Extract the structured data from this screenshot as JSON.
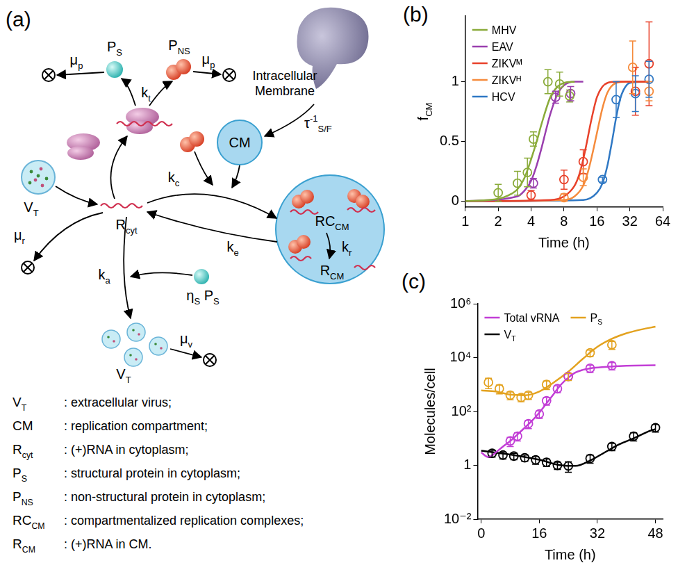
{
  "diagram": {
    "panel": "(a)",
    "labels": {
      "p_s": {
        "text": "P",
        "sub": "S"
      },
      "p_ns": {
        "text": "P",
        "sub": "NS"
      },
      "mu_p_left": {
        "text": "μ",
        "sub": "p"
      },
      "mu_p_right": {
        "text": "μ",
        "sub": "p"
      },
      "k_t": {
        "text": "k",
        "sub": "t"
      },
      "membrane": "Intracellular Membrane",
      "tau": {
        "text": "τ",
        "sup": "-1",
        "sub": "S/F"
      },
      "cm": "CM",
      "v_t_in": {
        "text": "V",
        "sub": "T"
      },
      "r_cyt": {
        "text": "R",
        "sub": "cyt"
      },
      "mu_r": {
        "text": "μ",
        "sub": "r"
      },
      "k_c": {
        "text": "k",
        "sub": "c"
      },
      "k_e": {
        "text": "k",
        "sub": "e"
      },
      "rc_cm": {
        "text": "RC",
        "sub": "CM"
      },
      "k_r": {
        "text": "k",
        "sub": "r"
      },
      "r_cm": {
        "text": "R",
        "sub": "CM"
      },
      "eta_p_s": [
        {
          "text": "η",
          "sub": "S"
        },
        {
          "text": " P",
          "sub": "S"
        }
      ],
      "k_a": {
        "text": "k",
        "sub": "a"
      },
      "v_t_out": {
        "text": "V",
        "sub": "T"
      },
      "mu_v": {
        "text": "μ",
        "sub": "v"
      }
    },
    "definitions": [
      {
        "symbol": {
          "text": "V",
          "sub": "T"
        },
        "text": ": extracellular virus;"
      },
      {
        "symbol": {
          "text": "CM"
        },
        "text": ": replication compartment;"
      },
      {
        "symbol": {
          "text": "R",
          "sub": "cyt"
        },
        "text": ": (+)RNA in cytoplasm;"
      },
      {
        "symbol": {
          "text": "P",
          "sub": "S"
        },
        "text": ": structural protein in cytoplasm;"
      },
      {
        "symbol": {
          "text": "P",
          "sub": "NS"
        },
        "text": ": non-structural protein in cytoplasm;"
      },
      {
        "symbol": {
          "text": "RC",
          "sub": "CM"
        },
        "text": ": compartmentalized replication complexes;"
      },
      {
        "symbol": {
          "text": "R",
          "sub": "CM"
        },
        "text": ": (+)RNA in CM."
      }
    ]
  },
  "chart_data": [
    {
      "panel": "(b)",
      "type": "line",
      "x_label": "Time (h)",
      "y_label": {
        "text": "f",
        "sub": "CM"
      },
      "log": "x",
      "grid": false,
      "legend": "upper left",
      "xlim": [
        1,
        64
      ],
      "xticks": [
        1,
        2,
        4,
        8,
        16,
        32,
        64
      ],
      "ylim": [
        -0.05,
        1.55
      ],
      "yticks": [
        0,
        0.5,
        1
      ],
      "series": [
        {
          "name": "MHV",
          "color": "#8aab3a",
          "marker": "circle",
          "line_style": "solid",
          "x": [
            2,
            3,
            3.7,
            4.2,
            5.7,
            7.3,
            9
          ],
          "values": [
            0.07,
            0.15,
            0.24,
            0.52,
            1.0,
            0.98,
            0.88
          ],
          "error": [
            0.07,
            0.1,
            0.12,
            0.06,
            0.1,
            0.1,
            0.05
          ],
          "fit": {
            "x": [
              1,
              2,
              2.5,
              3,
              3.5,
              4,
              4.5,
              5,
              6,
              7,
              8,
              10
            ],
            "values": [
              0,
              0.02,
              0.05,
              0.1,
              0.2,
              0.35,
              0.5,
              0.65,
              0.87,
              0.96,
              0.99,
              1.0
            ]
          }
        },
        {
          "name": "EAV",
          "color": "#9a3fae",
          "marker": "circle",
          "line_style": "solid",
          "x": [
            4.2,
            6.7,
            9.2
          ],
          "values": [
            0.15,
            0.87,
            0.9
          ],
          "error": [
            0.04,
            0.05,
            0.06
          ],
          "fit": {
            "x": [
              1,
              3,
              3.5,
              4,
              4.5,
              5,
              5.5,
              6,
              7,
              8,
              10,
              12
            ],
            "values": [
              0,
              0.04,
              0.09,
              0.17,
              0.3,
              0.45,
              0.6,
              0.73,
              0.9,
              0.97,
              1.0,
              1.0
            ]
          }
        },
        {
          "name": "ZIKVᴹ",
          "color": "#e8412a",
          "marker": "circle",
          "line_style": "solid",
          "x": [
            4,
            8,
            12,
            36,
            48
          ],
          "values": [
            0.05,
            0.18,
            0.33,
            0.92,
            1.15
          ],
          "error": [
            0.04,
            0.08,
            0.1,
            0.2,
            0.35
          ],
          "fit": {
            "x": [
              1,
              6,
              8,
              10,
              11,
              12,
              13,
              14,
              16,
              18,
              20,
              24,
              48
            ],
            "values": [
              0,
              0.01,
              0.04,
              0.13,
              0.22,
              0.35,
              0.5,
              0.65,
              0.87,
              0.96,
              0.99,
              1.0,
              1.0
            ]
          }
        },
        {
          "name": "ZIKVᴴ",
          "color": "#f58b3c",
          "marker": "circle",
          "line_style": "solid",
          "x": [
            8,
            12,
            34,
            48
          ],
          "values": [
            0.03,
            0.2,
            1.12,
            0.92
          ],
          "error": [
            0.03,
            0.07,
            0.22,
            0.08
          ],
          "fit": {
            "x": [
              1,
              8,
              10,
              12,
              13,
              14,
              15,
              16,
              18,
              20,
              24,
              30,
              48
            ],
            "values": [
              0,
              0.01,
              0.04,
              0.13,
              0.22,
              0.33,
              0.45,
              0.57,
              0.78,
              0.91,
              0.99,
              1.0,
              1.0
            ]
          }
        },
        {
          "name": "HCV",
          "color": "#2f78c4",
          "marker": "circle",
          "line_style": "solid",
          "x": [
            18,
            24,
            36,
            48
          ],
          "values": [
            0.18,
            0.85,
            0.9,
            1.02
          ],
          "error": [
            0.02,
            0.15,
            0.15,
            0.15
          ],
          "fit": {
            "x": [
              1,
              12,
              16,
              18,
              20,
              21,
              22,
              24,
              26,
              28,
              32,
              48
            ],
            "values": [
              0,
              0.01,
              0.07,
              0.15,
              0.3,
              0.4,
              0.5,
              0.7,
              0.85,
              0.93,
              0.99,
              1.0
            ]
          }
        }
      ]
    },
    {
      "panel": "(c)",
      "type": "line",
      "x_label": "Time (h)",
      "y_label": "Molecules/cell",
      "log": "y",
      "grid": false,
      "legend": "upper left",
      "xlim": [
        -1,
        50
      ],
      "xticks": [
        0,
        16,
        32,
        48
      ],
      "ylim": [
        0.01,
        1000000
      ],
      "yticks": [
        {
          "value": 0.01,
          "label": "10⁻²"
        },
        1,
        {
          "value": 100,
          "label": "10²"
        },
        {
          "value": 10000,
          "label": "10⁴"
        },
        {
          "value": 1000000,
          "label": "10⁶"
        }
      ],
      "series": [
        {
          "name": "Total vRNA",
          "color": "#c23ed6",
          "marker": "circle",
          "line_style": "solid",
          "x": [
            8,
            10,
            13,
            16,
            18,
            21,
            24,
            30,
            36
          ],
          "values": [
            8,
            12,
            35,
            80,
            250,
            700,
            2000,
            4000,
            5000
          ],
          "error": [
            3,
            4,
            12,
            25,
            80,
            200,
            500,
            1200,
            1500
          ],
          "fit": {
            "x": [
              0,
              2,
              4,
              6,
              8,
              10,
              12,
              14,
              16,
              18,
              20,
              22,
              24,
              26,
              28,
              30,
              34,
              40,
              48
            ],
            "values": [
              3,
              2,
              3,
              5,
              8,
              14,
              25,
              45,
              90,
              200,
              450,
              1000,
              1800,
              2800,
              3500,
              4000,
              4500,
              5000,
              5200
            ]
          }
        },
        {
          "name": "P",
          "name_sub": "S",
          "color": "#e3a21f",
          "marker": "circle",
          "line_style": "solid",
          "x": [
            2,
            5,
            8,
            11,
            13,
            18,
            24,
            30,
            36
          ],
          "values": [
            1200,
            700,
            400,
            330,
            400,
            1000,
            2000,
            15000,
            30000
          ],
          "error": [
            500,
            250,
            130,
            100,
            120,
            350,
            600,
            4000,
            10000
          ],
          "fit": {
            "x": [
              0,
              4,
              8,
              12,
              16,
              20,
              24,
              28,
              32,
              36,
              40,
              44,
              48
            ],
            "values": [
              600,
              550,
              420,
              400,
              550,
              1200,
              3000,
              9000,
              25000,
              50000,
              80000,
              110000,
              140000
            ]
          }
        },
        {
          "name": "V",
          "name_sub": "T",
          "color": "#000000",
          "marker": "circle",
          "line_style": "solid",
          "x": [
            3,
            6,
            9,
            12,
            15,
            18,
            21,
            24,
            30,
            36,
            42,
            48
          ],
          "values": [
            2.8,
            2.4,
            2.2,
            1.9,
            1.6,
            1.3,
            1,
            0.95,
            1.8,
            5,
            12,
            25
          ],
          "error": [
            0.8,
            0.7,
            0.6,
            0.5,
            0.5,
            0.4,
            0.3,
            0.4,
            0.6,
            1.5,
            4,
            8
          ],
          "fit": {
            "x": [
              0,
              8,
              16,
              22,
              26,
              30,
              34,
              38,
              42,
              46,
              48
            ],
            "values": [
              3.5,
              2.5,
              1.6,
              1.0,
              0.95,
              1.5,
              3,
              6,
              10,
              18,
              22
            ]
          }
        }
      ]
    }
  ]
}
